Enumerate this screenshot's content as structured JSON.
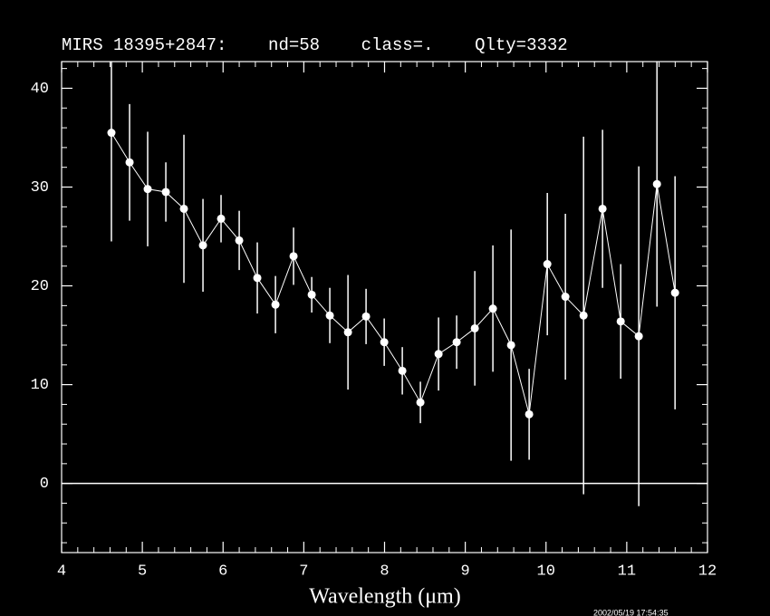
{
  "chart_data": {
    "type": "errorbar",
    "title": "MIRS 18395+2847:    nd=58    class=.    Qlty=3332",
    "x_label": "Wavelength (μm)",
    "timestamp": "2002/05/19 17:54:35",
    "xlim": [
      4,
      12
    ],
    "xticks": [
      4,
      5,
      6,
      7,
      8,
      9,
      10,
      11,
      12
    ],
    "ylim": [
      -7,
      42.7
    ],
    "yticks": [
      0,
      10,
      20,
      30,
      40
    ],
    "hline": 0,
    "series": [
      {
        "color": "#ffffff",
        "x": [
          4.617,
          4.842,
          5.066,
          5.291,
          5.515,
          5.751,
          5.975,
          6.2,
          6.424,
          6.649,
          6.873,
          7.098,
          7.322,
          7.547,
          7.771,
          7.996,
          8.22,
          8.444,
          8.669,
          8.893,
          9.118,
          9.342,
          9.567,
          9.791,
          10.016,
          10.24,
          10.465,
          10.7,
          10.925,
          11.149,
          11.374,
          11.598
        ],
        "values": [
          35.5,
          32.5,
          29.8,
          29.5,
          27.8,
          24.1,
          26.8,
          24.6,
          20.8,
          18.1,
          23.0,
          19.1,
          17.0,
          15.3,
          16.9,
          14.3,
          11.4,
          8.2,
          13.1,
          14.3,
          15.7,
          17.7,
          14.0,
          7.0,
          22.2,
          18.9,
          17.0,
          27.8,
          16.4,
          14.9,
          30.3,
          19.3
        ],
        "errors": [
          11,
          5.9,
          5.8,
          3.0,
          7.5,
          4.7,
          2.4,
          3.0,
          3.6,
          2.9,
          2.9,
          1.8,
          2.8,
          5.8,
          2.8,
          2.4,
          2.4,
          2.1,
          3.7,
          2.7,
          5.8,
          6.4,
          11.7,
          4.6,
          7.2,
          8.4,
          18.1,
          8.0,
          5.8,
          17.2,
          12.4,
          11.8
        ]
      }
    ]
  }
}
